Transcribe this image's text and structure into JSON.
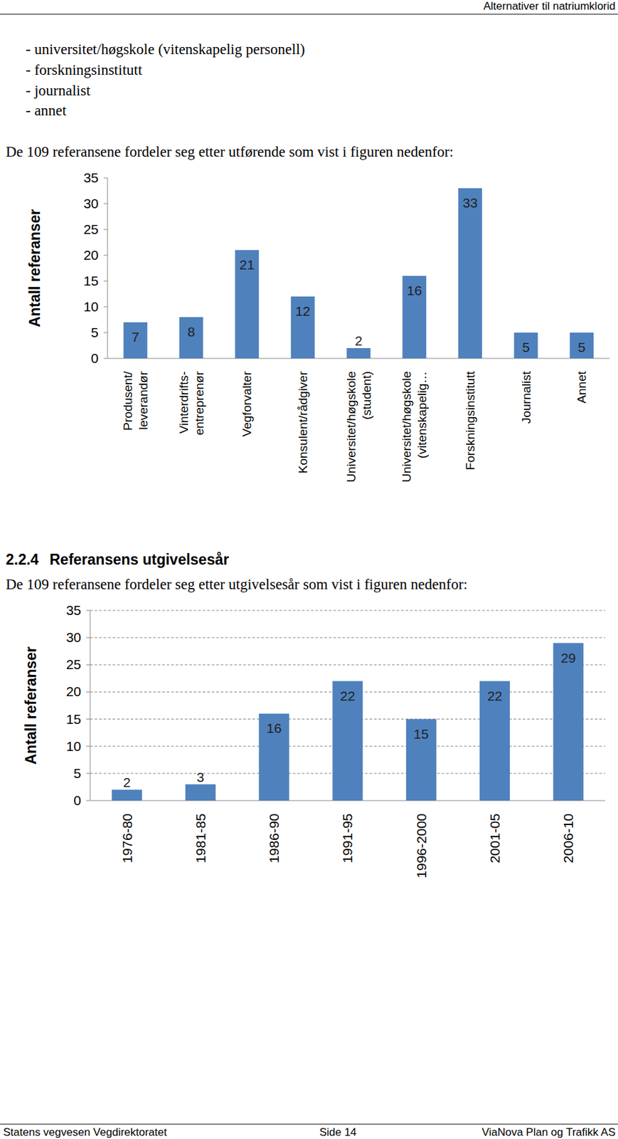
{
  "header": "Alternativer til natriumklorid",
  "bullets": [
    "- universitet/høgskole (vitenskapelig personell)",
    "- forskningsinstitutt",
    "- journalist",
    "- annet"
  ],
  "paragraphs": [
    "De 109 referansene fordeler seg etter utførende som vist i figuren nedenfor:",
    "De 109 referansene fordeler seg etter utgivelsesår som vist i figuren nedenfor:"
  ],
  "heading": {
    "number": "2.2.4",
    "title": "Referansens utgivelsesår"
  },
  "footer": {
    "left": "Statens vegvesen Vegdirektoratet",
    "center": "Side 14",
    "right": "ViaNova Plan og Trafikk AS"
  },
  "chart_data": [
    {
      "type": "bar",
      "ylabel": "Antall referanser",
      "categories": [
        "Produsent/\nleverandør",
        "Vinterdrifts-\nentreprenør",
        "Vegforvalter",
        "Konsulent/rådgiver",
        "Universitet/høgskole\n(student)",
        "Universitet/høgskole\n(vitenskapelig…",
        "Forskningsinstitutt",
        "Journalist",
        "Annet"
      ],
      "values": [
        7,
        8,
        21,
        12,
        2,
        16,
        33,
        5,
        5
      ],
      "color": "#4f81bd",
      "ylim": [
        0,
        35
      ],
      "yticks": [
        0,
        5,
        10,
        15,
        20,
        25,
        30,
        35
      ],
      "grid": false,
      "data_labels": true
    },
    {
      "type": "bar",
      "ylabel": "Antall referanser",
      "categories": [
        "1976-80",
        "1981-85",
        "1986-90",
        "1991-95",
        "1996-2000",
        "2001-05",
        "2006-10"
      ],
      "values": [
        2,
        3,
        16,
        22,
        15,
        22,
        29
      ],
      "color": "#4f81bd",
      "ylim": [
        0,
        35
      ],
      "yticks": [
        0,
        5,
        10,
        15,
        20,
        25,
        30,
        35
      ],
      "grid": true,
      "data_labels": true
    }
  ]
}
